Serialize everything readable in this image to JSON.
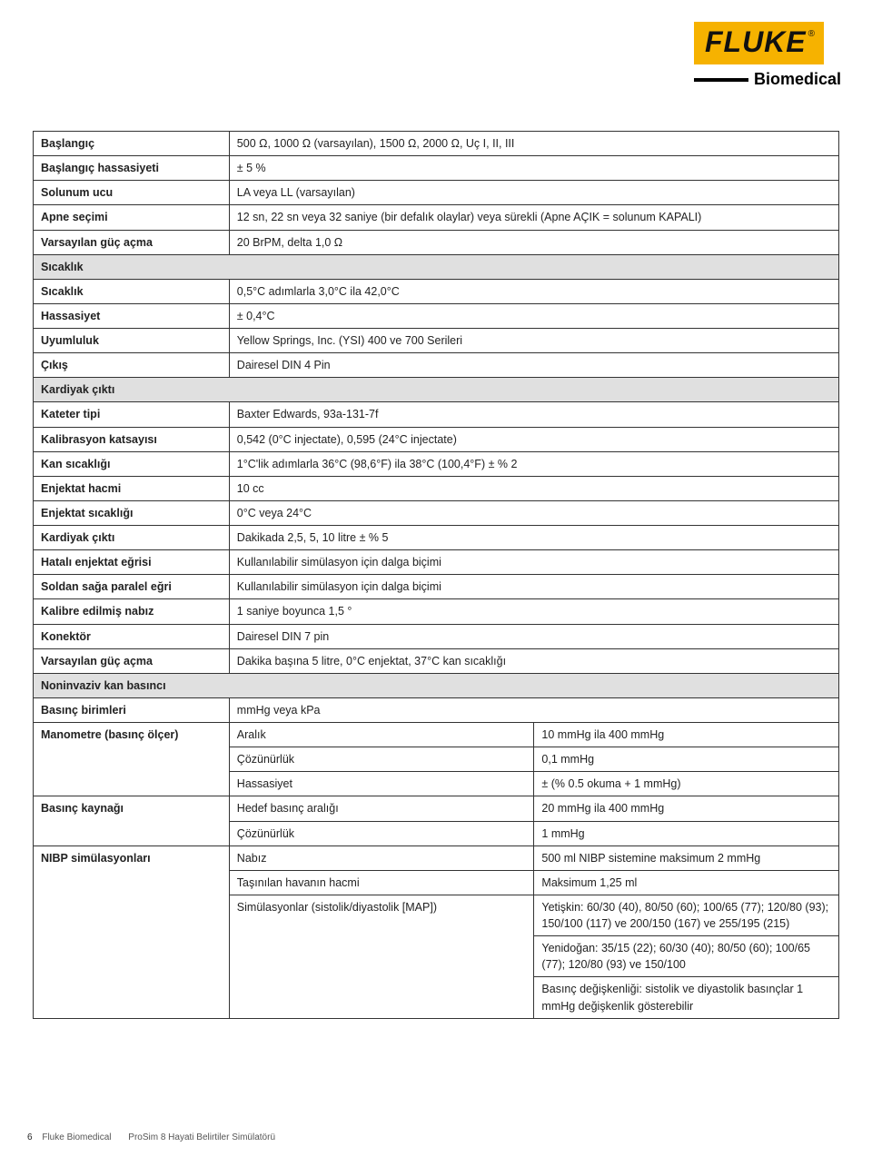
{
  "brand": {
    "logo": "FLUKE",
    "reg": "®",
    "sub": "Biomedical"
  },
  "rows": [
    {
      "type": "kv",
      "label": "Başlangıç",
      "value": "500 Ω, 1000 Ω (varsayılan), 1500 Ω, 2000 Ω, Uç I, II, III"
    },
    {
      "type": "kv",
      "label": "Başlangıç hassasiyeti",
      "value": "± 5 %"
    },
    {
      "type": "kv",
      "label": "Solunum ucu",
      "value": "LA veya LL (varsayılan)"
    },
    {
      "type": "kv",
      "label": "Apne seçimi",
      "value": "12 sn, 22 sn veya 32 saniye (bir defalık olaylar) veya sürekli (Apne AÇIK = solunum KAPALI)"
    },
    {
      "type": "kv",
      "label": "Varsayılan güç açma",
      "value": "20 BrPM, delta 1,0 Ω"
    },
    {
      "type": "section",
      "label": "Sıcaklık"
    },
    {
      "type": "kv",
      "label": "Sıcaklık",
      "value": "0,5°C adımlarla 3,0°C ila 42,0°C"
    },
    {
      "type": "kv",
      "label": "Hassasiyet",
      "value": "± 0,4°C"
    },
    {
      "type": "kv",
      "label": "Uyumluluk",
      "value": "Yellow Springs, Inc. (YSI) 400 ve 700 Serileri"
    },
    {
      "type": "kv",
      "label": "Çıkış",
      "value": "Dairesel DIN 4 Pin"
    },
    {
      "type": "section",
      "label": "Kardiyak çıktı"
    },
    {
      "type": "kv",
      "label": "Kateter tipi",
      "value": "Baxter Edwards, 93a-131-7f"
    },
    {
      "type": "kv",
      "label": "Kalibrasyon katsayısı",
      "value": "0,542 (0°C injectate), 0,595 (24°C injectate)"
    },
    {
      "type": "kv",
      "label": "Kan sıcaklığı",
      "value": "1°C'lik adımlarla 36°C (98,6°F) ila 38°C (100,4°F) ± % 2"
    },
    {
      "type": "kv",
      "label": "Enjektat hacmi",
      "value": "10 cc"
    },
    {
      "type": "kv",
      "label": "Enjektat sıcaklığı",
      "value": "0°C veya 24°C"
    },
    {
      "type": "kv",
      "label": "Kardiyak çıktı",
      "value": "Dakikada 2,5, 5, 10 litre ± % 5"
    },
    {
      "type": "kv",
      "label": "Hatalı enjektat eğrisi",
      "value": "Kullanılabilir simülasyon için dalga biçimi"
    },
    {
      "type": "kv",
      "label": "Soldan sağa paralel eğri",
      "value": "Kullanılabilir simülasyon için dalga biçimi"
    },
    {
      "type": "kv",
      "label": "Kalibre edilmiş nabız",
      "value": "1 saniye boyunca 1,5 °"
    },
    {
      "type": "kv",
      "label": "Konektör",
      "value": "Dairesel DIN 7 pin"
    },
    {
      "type": "kv",
      "label": "Varsayılan güç açma",
      "value": "Dakika başına 5 litre, 0°C enjektat, 37°C kan sıcaklığı"
    },
    {
      "type": "section",
      "label": "Noninvaziv kan basıncı"
    },
    {
      "type": "kv",
      "label": "Basınç birimleri",
      "value": "mmHg veya kPa"
    },
    {
      "type": "triple_first",
      "label": "Manometre (basınç ölçer)",
      "mid": "Aralık",
      "right": "10 mmHg ila 400 mmHg"
    },
    {
      "type": "triple_cont",
      "mid": "Çözünürlük",
      "right": "0,1 mmHg"
    },
    {
      "type": "triple_cont",
      "mid": "Hassasiyet",
      "right": "± (% 0.5 okuma + 1 mmHg)"
    },
    {
      "type": "triple_first",
      "label": "Basınç kaynağı",
      "mid": "Hedef basınç aralığı",
      "right": "20 mmHg ila 400 mmHg"
    },
    {
      "type": "triple_cont",
      "mid": "Çözünürlük",
      "right": "1 mmHg"
    },
    {
      "type": "triple_first",
      "label": "NIBP simülasyonları",
      "mid": "Nabız",
      "right": "500 ml NIBP sistemine maksimum 2 mmHg"
    },
    {
      "type": "triple_cont",
      "mid": "Taşınılan havanın hacmi",
      "right": "Maksimum 1,25 ml"
    },
    {
      "type": "triple_cont",
      "mid": "Simülasyonlar (sistolik/diyastolik [MAP])",
      "right": "Yetişkin: 60/30 (40), 80/50 (60); 100/65 (77); 120/80 (93); 150/100 (117) ve 200/150 (167) ve 255/195 (215)"
    },
    {
      "type": "triple_right_only",
      "right": "Yenidoğan: 35/15 (22); 60/30 (40); 80/50 (60); 100/65 (77); 120/80 (93) ve 150/100"
    },
    {
      "type": "triple_right_only",
      "right": "Basınç değişkenliği: sistolik ve diyastolik basınçlar 1 mmHg değişkenlik gösterebilir"
    }
  ],
  "row_spans": {
    "24": 3,
    "27": 2,
    "29": 5
  },
  "footer": {
    "page": "6",
    "company": "Fluke Biomedical",
    "title": "ProSim 8 Hayati Belirtiler Simülatörü"
  }
}
